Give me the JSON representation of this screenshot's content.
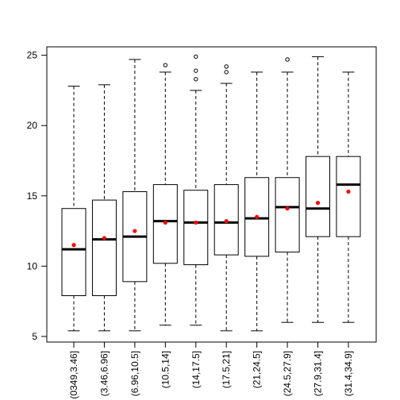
{
  "chart_data": {
    "type": "boxplot",
    "title": "",
    "xlabel": "",
    "ylabel": "",
    "ylim": [
      4.6,
      25.6
    ],
    "yticks": [
      5,
      10,
      15,
      20,
      25
    ],
    "ytick_labels": [
      "5",
      "10",
      "15",
      "20",
      "25"
    ],
    "categories": [
      "(0349,3.46]",
      "(3.46,6.96]",
      "(6.96,10.5]",
      "(10.5,14]",
      "(14,17.5]",
      "(17.5,21]",
      "(21,24.5]",
      "(24.5,27.9]",
      "(27.9,31.4]",
      "(31.4,34.9]"
    ],
    "boxes": [
      {
        "whisker_low": 5.4,
        "q1": 7.9,
        "median": 11.2,
        "q3": 14.1,
        "whisker_high": 22.8,
        "mean": 11.5,
        "outliers": []
      },
      {
        "whisker_low": 5.4,
        "q1": 7.9,
        "median": 11.9,
        "q3": 14.7,
        "whisker_high": 22.9,
        "mean": 12.0,
        "outliers": []
      },
      {
        "whisker_low": 5.4,
        "q1": 8.9,
        "median": 12.1,
        "q3": 15.3,
        "whisker_high": 24.7,
        "mean": 12.5,
        "outliers": []
      },
      {
        "whisker_low": 5.8,
        "q1": 10.2,
        "median": 13.2,
        "q3": 15.8,
        "whisker_high": 23.8,
        "mean": 13.1,
        "outliers": [
          24.3
        ]
      },
      {
        "whisker_low": 5.8,
        "q1": 10.1,
        "median": 13.1,
        "q3": 15.4,
        "whisker_high": 22.5,
        "mean": 13.1,
        "outliers": [
          23.3,
          23.9,
          24.9
        ]
      },
      {
        "whisker_low": 5.4,
        "q1": 10.8,
        "median": 13.1,
        "q3": 15.8,
        "whisker_high": 23.0,
        "mean": 13.2,
        "outliers": [
          23.8,
          24.2
        ]
      },
      {
        "whisker_low": 5.4,
        "q1": 10.7,
        "median": 13.4,
        "q3": 16.3,
        "whisker_high": 23.8,
        "mean": 13.5,
        "outliers": []
      },
      {
        "whisker_low": 6.0,
        "q1": 11.0,
        "median": 14.2,
        "q3": 16.3,
        "whisker_high": 23.8,
        "mean": 14.1,
        "outliers": [
          24.7
        ]
      },
      {
        "whisker_low": 6.0,
        "q1": 12.1,
        "median": 14.1,
        "q3": 17.8,
        "whisker_high": 24.9,
        "mean": 14.5,
        "outliers": []
      },
      {
        "whisker_low": 6.0,
        "q1": 12.1,
        "median": 15.8,
        "q3": 17.8,
        "whisker_high": 23.8,
        "mean": 15.3,
        "outliers": []
      }
    ],
    "colors": {
      "box": "#000000",
      "mean_marker": "#ff0000",
      "background": "#ffffff"
    }
  }
}
